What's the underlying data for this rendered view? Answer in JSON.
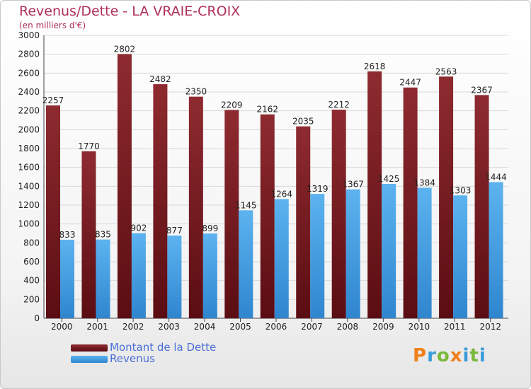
{
  "chart_data": {
    "type": "bar",
    "title": "Revenus/Dette - LA VRAIE-CROIX",
    "subtitle": "(en milliers d'€)",
    "categories": [
      "2000",
      "2001",
      "2002",
      "2003",
      "2004",
      "2005",
      "2006",
      "2007",
      "2008",
      "2009",
      "2010",
      "2011",
      "2012"
    ],
    "series": [
      {
        "name": "Montant de la Dette",
        "color": "#7a1f24",
        "values": [
          2257,
          1770,
          2802,
          2482,
          2350,
          2209,
          2162,
          2035,
          2212,
          2618,
          2447,
          2563,
          2367
        ]
      },
      {
        "name": "Revenus",
        "color": "#4aa3e6",
        "values": [
          833,
          835,
          902,
          877,
          899,
          1145,
          1264,
          1319,
          1367,
          1425,
          1384,
          1303,
          1444
        ]
      }
    ],
    "ylim": [
      0,
      3000
    ],
    "yticks": [
      0,
      200,
      400,
      600,
      800,
      1000,
      1200,
      1400,
      1600,
      1800,
      2000,
      2200,
      2400,
      2600,
      2800,
      3000
    ],
    "grid": true,
    "legend": "bottom-left"
  },
  "logo": {
    "text": "Proxiti",
    "letters": [
      "P",
      "r",
      "o",
      "x",
      "i",
      "t",
      "i"
    ],
    "colors": [
      "#f07f1a",
      "#3a9bd9",
      "#7ab83a",
      "#f07f1a",
      "#3a9bd9",
      "#7ab83a",
      "#3a9bd9"
    ]
  }
}
